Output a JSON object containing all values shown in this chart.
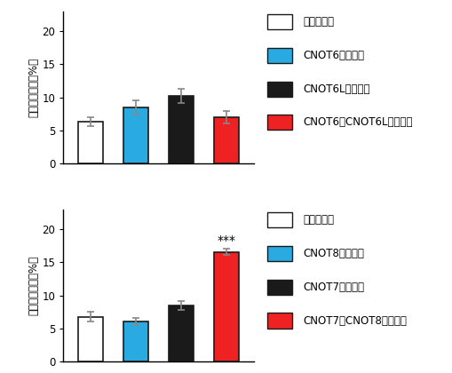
{
  "top": {
    "values": [
      6.3,
      8.5,
      10.2,
      7.0
    ],
    "errors": [
      0.7,
      1.1,
      1.1,
      1.0
    ],
    "colors": [
      "#ffffff",
      "#29abe2",
      "#1a1a1a",
      "#ee2222"
    ],
    "edgecolors": [
      "#1a1a1a",
      "#1a1a1a",
      "#1a1a1a",
      "#1a1a1a"
    ],
    "ylim": [
      0,
      23
    ],
    "yticks": [
      0,
      5,
      10,
      15,
      20
    ],
    "ylabel": "死細胞の割合（%）",
    "legend_labels": [
      "野生型細胞",
      "CNOT6欠損細胞",
      "CNOT6L欠損細胞",
      "CNOT6・CNOT6L欠損細胞"
    ],
    "legend_colors": [
      "#ffffff",
      "#29abe2",
      "#1a1a1a",
      "#ee2222"
    ]
  },
  "bottom": {
    "values": [
      6.8,
      6.1,
      8.5,
      16.6
    ],
    "errors": [
      0.7,
      0.5,
      0.7,
      0.5
    ],
    "colors": [
      "#ffffff",
      "#29abe2",
      "#1a1a1a",
      "#ee2222"
    ],
    "edgecolors": [
      "#1a1a1a",
      "#1a1a1a",
      "#1a1a1a",
      "#1a1a1a"
    ],
    "ylim": [
      0,
      23
    ],
    "yticks": [
      0,
      5,
      10,
      15,
      20
    ],
    "ylabel": "死細胞の割合（%）",
    "significance": {
      "bar_index": 3,
      "label": "***"
    },
    "legend_labels": [
      "野生型細胞",
      "CNOT8欠損細胞",
      "CNOT7欠損細胞",
      "CNOT7・CNOT8欠損細胞"
    ],
    "legend_colors": [
      "#ffffff",
      "#29abe2",
      "#1a1a1a",
      "#ee2222"
    ]
  },
  "error_color": "#888888",
  "bar_width": 0.55,
  "font_size_label": 8.5,
  "font_size_legend": 8.5,
  "font_size_tick": 8.5,
  "font_size_sig": 10
}
